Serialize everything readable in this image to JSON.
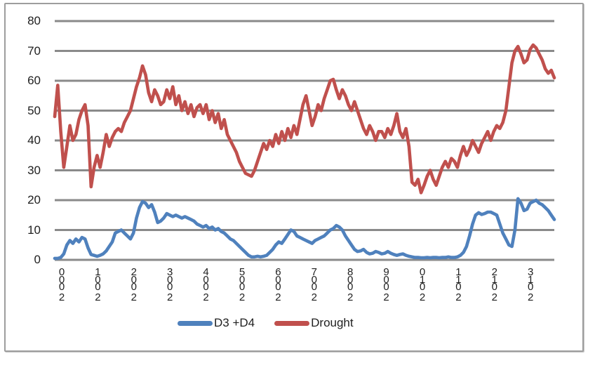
{
  "figure": {
    "background": "#ffffff",
    "border_color": "#9d9d9d"
  },
  "chart_data": {
    "type": "line",
    "title": "",
    "xlabel": "",
    "ylabel": "",
    "ylim": [
      0,
      80
    ],
    "y_ticks": [
      0,
      10,
      20,
      30,
      40,
      50,
      60,
      70,
      80
    ],
    "x_labels": [
      "2 000",
      "2 001",
      "2 002",
      "2 003",
      "2 004",
      "2 005",
      "2 006",
      "2 007",
      "2 008",
      "2 009",
      "2 010",
      "2 011",
      "2 012",
      "2 013"
    ],
    "x_label_style": "stacked-vertical-bottom-to-top",
    "x_start_year": 2000,
    "points_per_year": 12,
    "grid": "horizontal",
    "gridline_color": "#8a8a8a",
    "legend_position": "bottom",
    "series": [
      {
        "name": "D3 +D4",
        "color": "#4F81BD",
        "values": [
          0.5,
          0.5,
          0.8,
          2,
          5,
          6.5,
          5.5,
          7,
          6,
          7.5,
          7,
          4,
          1.8,
          1.5,
          1.2,
          1.5,
          2,
          3,
          4.5,
          6,
          9,
          9.5,
          10,
          9,
          8,
          7,
          9,
          14,
          17.5,
          19.5,
          19,
          17.5,
          18.5,
          16,
          12.5,
          13,
          14,
          15.5,
          15,
          14.5,
          15,
          14.5,
          14,
          14.5,
          14,
          13.5,
          13,
          12,
          11.5,
          11,
          11.5,
          10.5,
          11,
          10,
          10.5,
          9.5,
          9,
          8,
          7,
          6.5,
          5.5,
          4.5,
          3.5,
          2.5,
          1.5,
          1,
          1,
          1.2,
          1,
          1.2,
          1.5,
          2.5,
          3.5,
          5,
          6,
          5.5,
          7,
          8.5,
          10,
          9.5,
          8,
          7.5,
          7,
          6.5,
          6,
          5.5,
          6.5,
          7,
          7.5,
          8,
          9,
          10,
          10.5,
          11.5,
          11,
          10,
          8,
          6.5,
          5,
          3.5,
          2.8,
          3,
          3.5,
          2.5,
          2,
          2.2,
          2.8,
          2.5,
          2,
          2.2,
          2.8,
          2.2,
          1.8,
          1.5,
          1.8,
          2,
          1.5,
          1.2,
          1,
          0.8,
          0.8,
          0.7,
          0.7,
          0.8,
          0.7,
          0.8,
          0.8,
          0.7,
          0.8,
          0.8,
          1,
          0.8,
          0.8,
          1,
          1.5,
          2.5,
          4.5,
          8,
          12,
          15,
          15.8,
          15.2,
          15.5,
          16,
          16,
          15.5,
          15,
          12,
          9,
          7,
          5,
          4.5,
          10,
          20.5,
          19,
          16.5,
          17,
          19,
          19.5,
          20,
          19,
          18.5,
          17.5,
          16.5,
          15,
          13.5
        ]
      },
      {
        "name": "Drought",
        "color": "#C0504D",
        "values": [
          48,
          58.5,
          43,
          31,
          38,
          45,
          40,
          42,
          47,
          50,
          52,
          45,
          24.5,
          31,
          35,
          31,
          36,
          42,
          38,
          41,
          43,
          44,
          43,
          46,
          48,
          50,
          54,
          58,
          61,
          65,
          62,
          56,
          53,
          57,
          55,
          52,
          53,
          57,
          54,
          58,
          52,
          55,
          50,
          53,
          49,
          52,
          48,
          51,
          52,
          49,
          52,
          47,
          50,
          46,
          49,
          44,
          47,
          42,
          40,
          38,
          36,
          33,
          31,
          29,
          28.5,
          28,
          30,
          33,
          36,
          39,
          37,
          40,
          38,
          42,
          39,
          43,
          40,
          44,
          41,
          45,
          42,
          47,
          52,
          55,
          50,
          45,
          48,
          52,
          50,
          54,
          57,
          60,
          60.5,
          57,
          54,
          57,
          55,
          52,
          50,
          53,
          50,
          47,
          44,
          42,
          45,
          43,
          40,
          43,
          43,
          41,
          44,
          42,
          45,
          49,
          43,
          41,
          44,
          38,
          26,
          25,
          27,
          22.5,
          25,
          28,
          30,
          27,
          25,
          28,
          31,
          33,
          31,
          34,
          33,
          31,
          35,
          38,
          35,
          37,
          40,
          38,
          36,
          39,
          41,
          43,
          40,
          43,
          45,
          44,
          46,
          50,
          58,
          66,
          70,
          71.5,
          69,
          66,
          67,
          70.5,
          72,
          71,
          69,
          67,
          64,
          62.5,
          63.5,
          61
        ]
      }
    ]
  }
}
